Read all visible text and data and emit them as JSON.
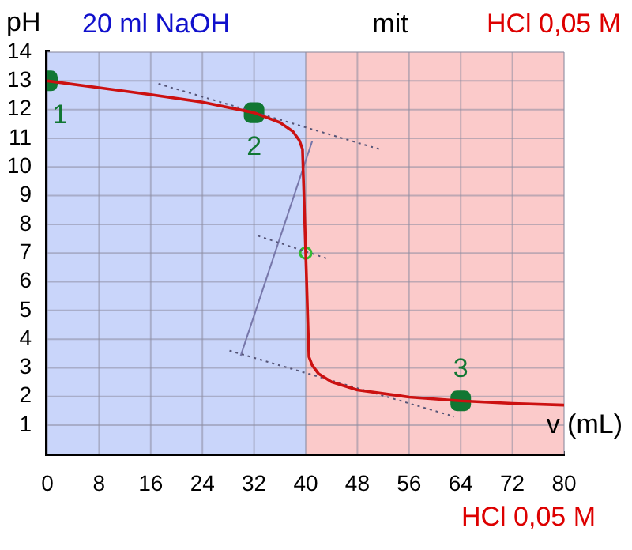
{
  "chart_data": {
    "type": "line",
    "xlabel": "v (mL)",
    "ylabel": "pH",
    "xlim": [
      0,
      80
    ],
    "xticks": [
      0,
      8,
      16,
      24,
      32,
      40,
      48,
      56,
      64,
      72,
      80
    ],
    "ylim": [
      0,
      14
    ],
    "yticks": [
      1,
      2,
      3,
      4,
      5,
      6,
      7,
      8,
      9,
      10,
      11,
      12,
      13,
      14
    ],
    "grid": true,
    "legend": false,
    "marker": "none",
    "line_style": "solid",
    "series": [
      {
        "type": "line",
        "color": "#cc1111",
        "x": [
          0,
          8,
          16,
          24,
          32,
          36,
          38,
          39,
          39.5,
          40,
          40.5,
          41,
          42,
          44,
          48,
          56,
          64,
          72,
          80
        ],
        "values": [
          13.0,
          12.76,
          12.52,
          12.26,
          11.89,
          11.55,
          11.24,
          10.93,
          10.62,
          7.0,
          3.38,
          3.09,
          2.79,
          2.51,
          2.23,
          1.98,
          1.85,
          1.76,
          1.7
        ]
      },
      {
        "type": "line",
        "color": "#555577",
        "line_style": "dotted",
        "x": [
          17.2,
          51.7
        ],
        "values": [
          12.9,
          10.6
        ]
      },
      {
        "type": "line",
        "color": "#555577",
        "line_style": "dotted",
        "x": [
          28.2,
          63
        ],
        "values": [
          3.6,
          1.3
        ]
      },
      {
        "type": "line",
        "color": "#555577",
        "line_style": "dotted",
        "x": [
          32.6,
          43.4
        ],
        "values": [
          7.6,
          6.8
        ]
      },
      {
        "type": "line",
        "color": "#7777aa",
        "line_style": "solid",
        "x": [
          29.9,
          41
        ],
        "values": [
          3.4,
          10.9
        ]
      },
      {
        "type": "scatter",
        "color": "#117733",
        "marker": "square",
        "x": [
          0,
          32,
          64
        ],
        "values": [
          13.0,
          11.89,
          1.85
        ]
      },
      {
        "type": "scatter",
        "color": "#33bb33",
        "marker": "circle",
        "x": [
          40
        ],
        "values": [
          7.0
        ]
      }
    ],
    "bands": [
      {
        "axis": "x",
        "from": 0,
        "to": 40,
        "label": "20 ml NaOH",
        "color": "#c9d5fa"
      },
      {
        "axis": "x",
        "from": 40,
        "to": 80,
        "label": "HCl 0,05 M",
        "color": "#fbcaca"
      }
    ],
    "annotations": [
      {
        "text": "1",
        "x": 0,
        "y": 13.0
      },
      {
        "text": "2",
        "x": 32,
        "y": 11.89
      },
      {
        "text": "3",
        "x": 64,
        "y": 1.85
      },
      "mit",
      "HCl 0,05 M"
    ]
  }
}
